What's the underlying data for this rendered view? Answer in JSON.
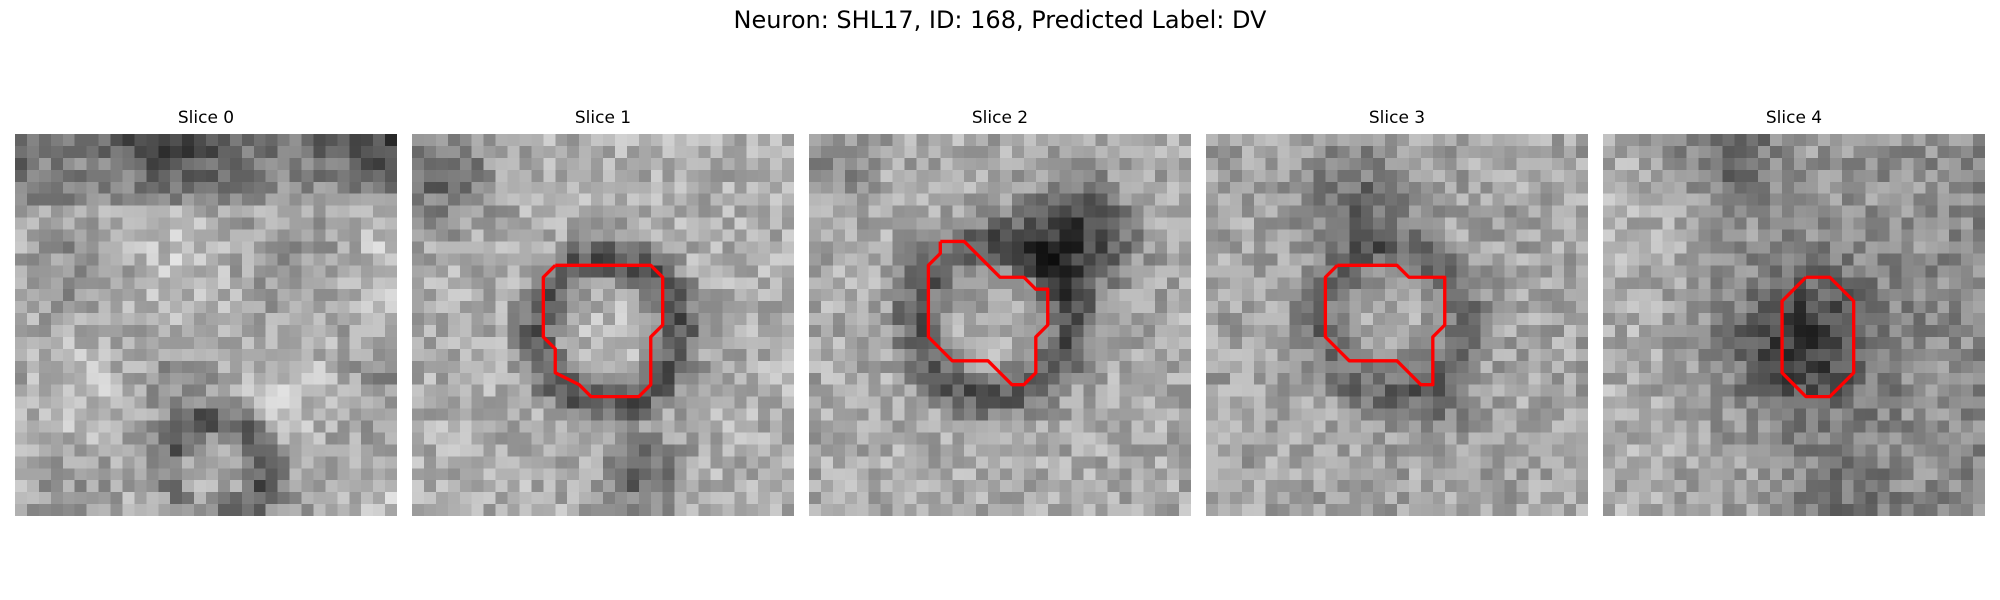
{
  "figure": {
    "title": "Neuron: SHL17, ID: 168, Predicted Label: DV",
    "contour_color": "#ff0000",
    "colormap": "gray"
  },
  "panels": [
    {
      "title": "Slice 0",
      "has_contour": false
    },
    {
      "title": "Slice 1",
      "has_contour": true
    },
    {
      "title": "Slice 2",
      "has_contour": true
    },
    {
      "title": "Slice 3",
      "has_contour": true
    },
    {
      "title": "Slice 4",
      "has_contour": true
    }
  ]
}
